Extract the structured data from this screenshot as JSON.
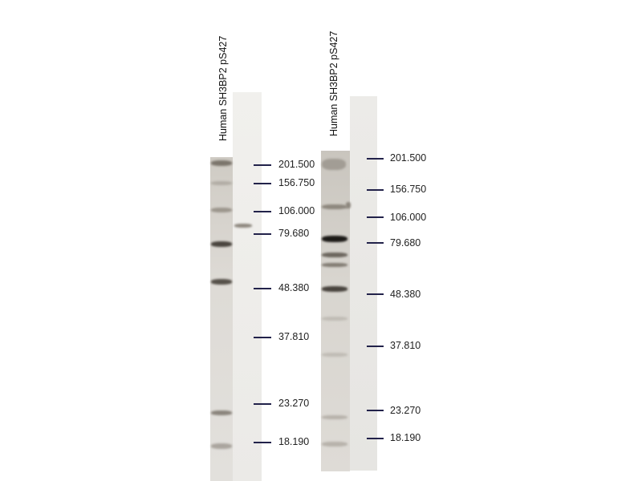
{
  "blots": [
    {
      "lane_label": "Human SH3BP2 pS427",
      "markers": [
        "201.500",
        "156.750",
        "106.000",
        "79.680",
        "48.380",
        "37.810",
        "23.270",
        "18.190"
      ]
    },
    {
      "lane_label": "Human SH3BP2 pS427",
      "markers": [
        "201.500",
        "156.750",
        "106.000",
        "79.680",
        "48.380",
        "37.810",
        "23.270",
        "18.190"
      ]
    }
  ]
}
